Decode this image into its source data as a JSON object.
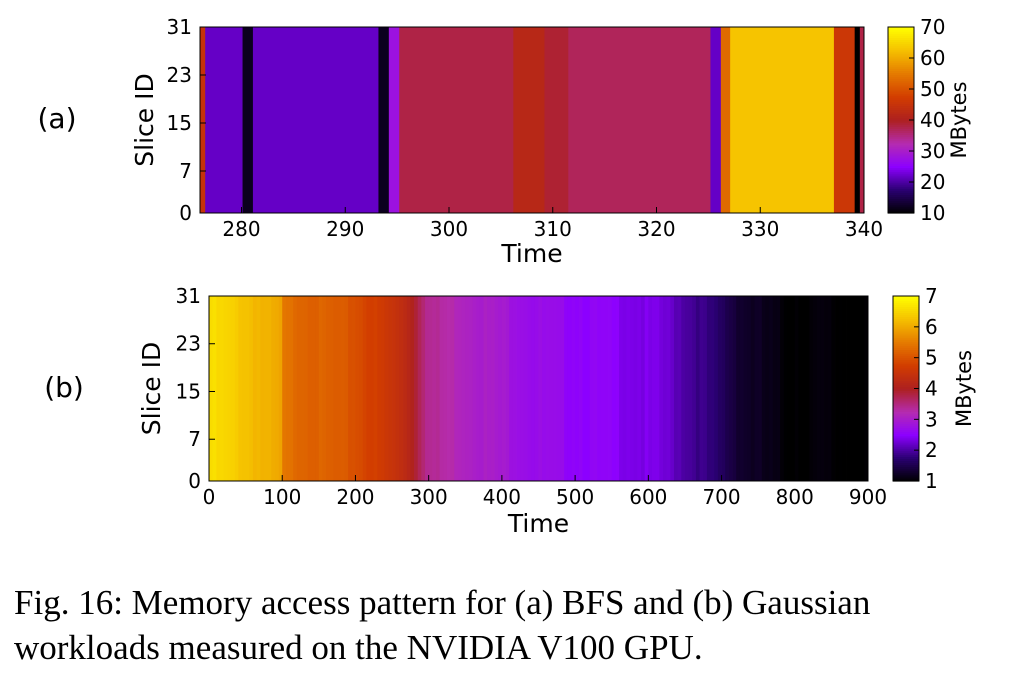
{
  "chart_data": [
    {
      "type": "heatmap",
      "panel_label": "(a)",
      "xlabel": "Time",
      "ylabel": "Slice ID",
      "xlim": [
        276,
        340
      ],
      "ylim": [
        0,
        31
      ],
      "xticks": [
        "280",
        "290",
        "300",
        "310",
        "320",
        "330",
        "340"
      ],
      "yticks": [
        "0",
        "7",
        "15",
        "23",
        "31"
      ],
      "colorbar": {
        "label": "MBytes",
        "min": 10,
        "max": 70,
        "ticks": [
          "10",
          "20",
          "30",
          "40",
          "50",
          "60",
          "70"
        ]
      },
      "colormap": [
        "#000000",
        "#2a0071",
        "#8c00ff",
        "#b52cb0",
        "#ad2020",
        "#d23d00",
        "#e57a00",
        "#f5c000",
        "#ffff00"
      ],
      "time_segments": [
        {
          "start": 276,
          "end": 276.5,
          "value": 45
        },
        {
          "start": 276.5,
          "end": 280.1,
          "value": 22
        },
        {
          "start": 280.1,
          "end": 281.1,
          "value": 12
        },
        {
          "start": 281.1,
          "end": 293.2,
          "value": 22
        },
        {
          "start": 293.2,
          "end": 294.2,
          "value": 12
        },
        {
          "start": 294.2,
          "end": 295.2,
          "value": 28
        },
        {
          "start": 295.2,
          "end": 306.2,
          "value": 38
        },
        {
          "start": 306.2,
          "end": 309.2,
          "value": 42
        },
        {
          "start": 309.2,
          "end": 311.5,
          "value": 39
        },
        {
          "start": 311.5,
          "end": 325.2,
          "value": 37
        },
        {
          "start": 325.2,
          "end": 326.2,
          "value": 22
        },
        {
          "start": 326.2,
          "end": 327.1,
          "value": 53
        },
        {
          "start": 327.1,
          "end": 337.1,
          "value": 63
        },
        {
          "start": 337.1,
          "end": 339.1,
          "value": 46
        },
        {
          "start": 339.1,
          "end": 339.6,
          "value": 10
        },
        {
          "start": 339.6,
          "end": 340,
          "value": 38
        }
      ]
    },
    {
      "type": "heatmap",
      "panel_label": "(b)",
      "xlabel": "Time",
      "ylabel": "Slice ID",
      "xlim": [
        0,
        900
      ],
      "ylim": [
        0,
        31
      ],
      "xticks": [
        "0",
        "100",
        "200",
        "300",
        "400",
        "500",
        "600",
        "700",
        "800",
        "900"
      ],
      "yticks": [
        "0",
        "7",
        "15",
        "23",
        "31"
      ],
      "colorbar": {
        "label": "MBytes",
        "min": 1,
        "max": 7,
        "ticks": [
          "1",
          "2",
          "3",
          "4",
          "5",
          "6",
          "7"
        ]
      },
      "colormap": [
        "#000000",
        "#2a0071",
        "#8c00ff",
        "#b52cb0",
        "#ad2020",
        "#d23d00",
        "#e57a00",
        "#f5c000",
        "#ffff00"
      ],
      "time_profile": [
        {
          "time": 0,
          "value": 6.6
        },
        {
          "time": 50,
          "value": 6.3
        },
        {
          "time": 100,
          "value": 5.9
        },
        {
          "time": 101,
          "value": 5.4
        },
        {
          "time": 200,
          "value": 5.0
        },
        {
          "time": 270,
          "value": 4.3
        },
        {
          "time": 300,
          "value": 3.4
        },
        {
          "time": 360,
          "value": 3.1
        },
        {
          "time": 450,
          "value": 2.7
        },
        {
          "time": 550,
          "value": 2.5
        },
        {
          "time": 620,
          "value": 2.3
        },
        {
          "time": 680,
          "value": 1.8
        },
        {
          "time": 730,
          "value": 1.3
        },
        {
          "time": 780,
          "value": 1.05
        },
        {
          "time": 900,
          "value": 1.0
        }
      ]
    }
  ],
  "caption": "Fig. 16: Memory access pattern for (a) BFS and (b) Gaussian workloads measured on the NVIDIA V100 GPU."
}
